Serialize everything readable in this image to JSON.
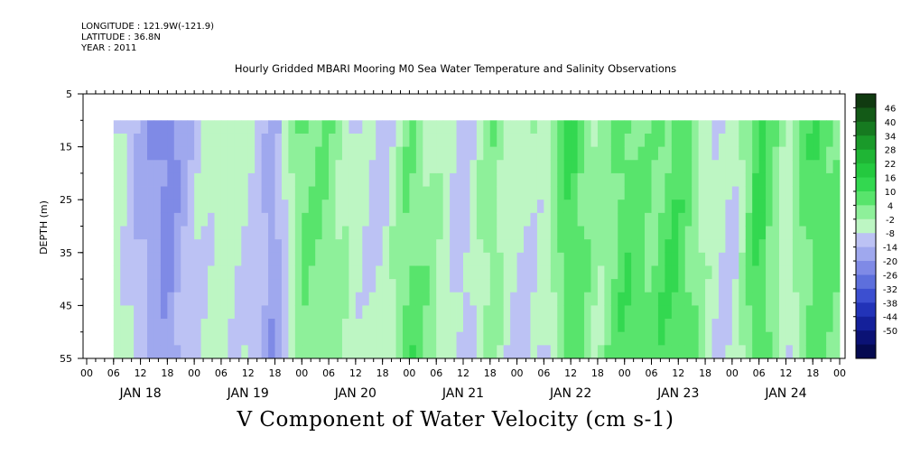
{
  "header": {
    "longitude": "LONGITUDE : 121.9W(-121.9)",
    "latitude": "LATITUDE : 36.8N",
    "year": "YEAR : 2011"
  },
  "chart_data": {
    "type": "heatmap",
    "title": "Hourly Gridded MBARI Mooring M0 Sea Water Temperature and Salinity Observations",
    "xlabel": "",
    "ylabel": "DEPTH (m)",
    "footer": "V Component of Water Velocity (cm s-1)",
    "yticks": [
      5,
      15,
      25,
      35,
      45,
      55
    ],
    "ylim": [
      55,
      5
    ],
    "hour_ticks": [
      "00",
      "06",
      "12",
      "18",
      "00",
      "06",
      "12",
      "18",
      "00",
      "06",
      "12",
      "18",
      "00",
      "06",
      "12",
      "18",
      "00",
      "06",
      "12",
      "18",
      "00",
      "06",
      "12",
      "18",
      "00",
      "06",
      "12",
      "18",
      "00"
    ],
    "days": [
      "JAN 18",
      "JAN 19",
      "JAN 20",
      "JAN 21",
      "JAN 22",
      "JAN 23",
      "JAN 24"
    ],
    "depth_range": [
      10,
      55
    ],
    "data_start_hour": 6,
    "total_hours": 168,
    "colorbar": {
      "levels": [
        "46",
        "40",
        "34",
        "28",
        "22",
        "16",
        "10",
        "4",
        "-2",
        "-8",
        "-14",
        "-20",
        "-26",
        "-32",
        "-38",
        "-44",
        "-50"
      ],
      "colors": [
        "#103a10",
        "#135a17",
        "#167a20",
        "#1a9a2a",
        "#1fb535",
        "#24c93f",
        "#33d850",
        "#58e46c",
        "#8ef09a",
        "#bdf6c3",
        "#bcc2f4",
        "#9fa8ee",
        "#7f8ae6",
        "#5d6fdc",
        "#3c4fd0",
        "#2233b8",
        "#14209a",
        "#0b1275",
        "#050a50"
      ]
    },
    "v_profile": [
      {
        "hour": 6,
        "v": -4
      },
      {
        "hour": 12,
        "v": -14
      },
      {
        "hour": 18,
        "v": -22
      },
      {
        "hour": 24,
        "v": -10
      },
      {
        "hour": 30,
        "v": -4
      },
      {
        "hour": 36,
        "v": -8
      },
      {
        "hour": 42,
        "v": -18
      },
      {
        "hour": 48,
        "v": 4
      },
      {
        "hour": 54,
        "v": 2
      },
      {
        "hour": 60,
        "v": -6
      },
      {
        "hour": 66,
        "v": -10
      },
      {
        "hour": 72,
        "v": 6
      },
      {
        "hour": 78,
        "v": -2
      },
      {
        "hour": 84,
        "v": -12
      },
      {
        "hour": 90,
        "v": 2
      },
      {
        "hour": 96,
        "v": -8
      },
      {
        "hour": 102,
        "v": -6
      },
      {
        "hour": 108,
        "v": 10
      },
      {
        "hour": 114,
        "v": -2
      },
      {
        "hour": 120,
        "v": 8
      },
      {
        "hour": 126,
        "v": 4
      },
      {
        "hour": 132,
        "v": 10
      },
      {
        "hour": 138,
        "v": -4
      },
      {
        "hour": 144,
        "v": -10
      },
      {
        "hour": 150,
        "v": 12
      },
      {
        "hour": 156,
        "v": -6
      },
      {
        "hour": 162,
        "v": 8
      },
      {
        "hour": 168,
        "v": 4
      }
    ]
  }
}
